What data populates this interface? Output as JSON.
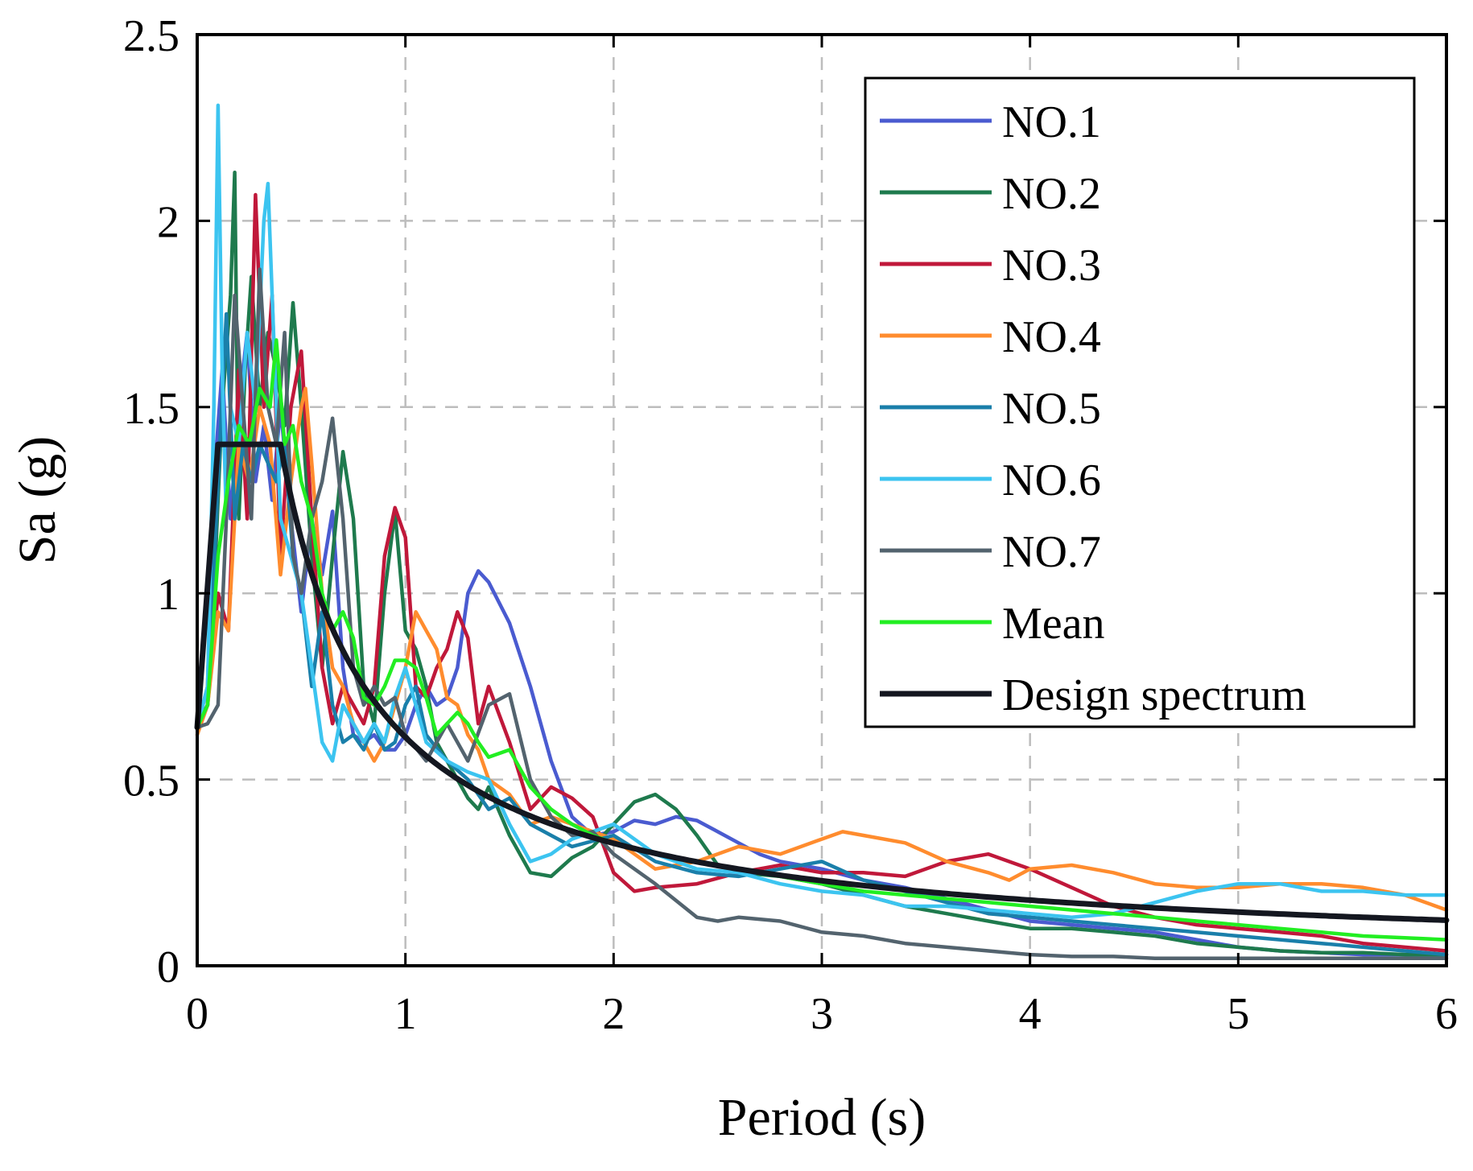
{
  "chart_data": {
    "type": "line",
    "title": "",
    "xlabel": "Period (s)",
    "ylabel": "Sa (g)",
    "xlim": [
      0,
      6
    ],
    "ylim": [
      0,
      2.5
    ],
    "xticks": [
      "0",
      "1",
      "2",
      "3",
      "4",
      "5",
      "6"
    ],
    "yticks": [
      "0",
      "0.5",
      "1",
      "1.5",
      "2",
      "2.5"
    ],
    "grid": true,
    "legend_position": "top-right",
    "series": [
      {
        "name": "NO.1",
        "color": "#4A5BD0",
        "x": [
          0,
          0.05,
          0.08,
          0.12,
          0.16,
          0.2,
          0.24,
          0.28,
          0.32,
          0.36,
          0.4,
          0.45,
          0.5,
          0.55,
          0.6,
          0.65,
          0.7,
          0.75,
          0.8,
          0.85,
          0.9,
          0.95,
          1.0,
          1.05,
          1.1,
          1.15,
          1.2,
          1.25,
          1.3,
          1.35,
          1.4,
          1.5,
          1.6,
          1.7,
          1.8,
          1.9,
          2.0,
          2.1,
          2.2,
          2.3,
          2.4,
          2.5,
          2.6,
          2.7,
          2.8,
          3.0,
          3.2,
          3.4,
          3.6,
          3.8,
          4.0,
          4.2,
          4.4,
          4.6,
          4.8,
          5.0,
          5.2,
          5.4,
          5.6,
          5.8,
          6.0
        ],
        "y": [
          0.64,
          0.75,
          1.3,
          1.6,
          1.2,
          1.5,
          1.7,
          1.3,
          1.45,
          1.25,
          1.5,
          1.2,
          0.95,
          1.2,
          1.05,
          1.22,
          0.8,
          0.62,
          0.6,
          0.62,
          0.58,
          0.58,
          0.62,
          0.7,
          0.75,
          0.7,
          0.72,
          0.8,
          1.0,
          1.06,
          1.03,
          0.92,
          0.75,
          0.55,
          0.4,
          0.35,
          0.36,
          0.39,
          0.38,
          0.4,
          0.39,
          0.36,
          0.33,
          0.3,
          0.28,
          0.26,
          0.23,
          0.21,
          0.18,
          0.15,
          0.12,
          0.11,
          0.1,
          0.09,
          0.07,
          0.05,
          0.04,
          0.035,
          0.03,
          0.03,
          0.03
        ]
      },
      {
        "name": "NO.2",
        "color": "#1E7A4D",
        "x": [
          0,
          0.05,
          0.08,
          0.12,
          0.16,
          0.18,
          0.2,
          0.23,
          0.26,
          0.3,
          0.34,
          0.38,
          0.42,
          0.46,
          0.5,
          0.55,
          0.6,
          0.65,
          0.7,
          0.75,
          0.8,
          0.85,
          0.9,
          0.95,
          1.0,
          1.05,
          1.1,
          1.15,
          1.2,
          1.25,
          1.3,
          1.35,
          1.4,
          1.5,
          1.6,
          1.7,
          1.8,
          1.9,
          2.0,
          2.1,
          2.2,
          2.3,
          2.4,
          2.5,
          2.6,
          2.8,
          3.0,
          3.2,
          3.4,
          3.6,
          3.8,
          4.0,
          4.2,
          4.4,
          4.6,
          4.8,
          5.0,
          5.2,
          5.4,
          5.6,
          5.8,
          6.0
        ],
        "y": [
          0.65,
          0.7,
          1.0,
          1.5,
          1.8,
          2.13,
          1.2,
          1.6,
          1.85,
          1.5,
          1.7,
          1.6,
          1.45,
          1.78,
          1.5,
          1.1,
          0.8,
          1.1,
          1.38,
          1.2,
          0.75,
          0.65,
          1.0,
          1.22,
          0.9,
          0.85,
          0.75,
          0.6,
          0.55,
          0.5,
          0.45,
          0.42,
          0.48,
          0.35,
          0.25,
          0.24,
          0.29,
          0.32,
          0.38,
          0.44,
          0.46,
          0.42,
          0.35,
          0.27,
          0.25,
          0.24,
          0.22,
          0.19,
          0.16,
          0.14,
          0.12,
          0.1,
          0.1,
          0.09,
          0.08,
          0.06,
          0.05,
          0.04,
          0.035,
          0.035,
          0.03,
          0.03
        ]
      },
      {
        "name": "NO.3",
        "color": "#C0183A",
        "x": [
          0,
          0.05,
          0.1,
          0.15,
          0.2,
          0.24,
          0.28,
          0.32,
          0.36,
          0.4,
          0.45,
          0.5,
          0.55,
          0.6,
          0.65,
          0.7,
          0.75,
          0.8,
          0.85,
          0.9,
          0.95,
          1.0,
          1.05,
          1.1,
          1.15,
          1.2,
          1.25,
          1.3,
          1.35,
          1.4,
          1.5,
          1.6,
          1.7,
          1.8,
          1.9,
          2.0,
          2.1,
          2.2,
          2.4,
          2.6,
          2.8,
          3.0,
          3.2,
          3.4,
          3.6,
          3.8,
          4.0,
          4.2,
          4.4,
          4.6,
          4.8,
          5.0,
          5.2,
          5.4,
          5.6,
          5.8,
          6.0
        ],
        "y": [
          0.64,
          0.7,
          1.0,
          0.9,
          1.6,
          1.2,
          2.07,
          1.5,
          1.8,
          1.1,
          1.5,
          1.65,
          1.2,
          0.8,
          0.65,
          0.75,
          0.7,
          0.65,
          0.75,
          1.1,
          1.23,
          1.15,
          0.75,
          0.72,
          0.8,
          0.85,
          0.95,
          0.88,
          0.65,
          0.75,
          0.6,
          0.42,
          0.48,
          0.45,
          0.4,
          0.25,
          0.2,
          0.21,
          0.22,
          0.25,
          0.27,
          0.25,
          0.25,
          0.24,
          0.28,
          0.3,
          0.26,
          0.21,
          0.16,
          0.13,
          0.11,
          0.1,
          0.09,
          0.08,
          0.06,
          0.05,
          0.04
        ]
      },
      {
        "name": "NO.4",
        "color": "#FF8C2E",
        "x": [
          0,
          0.05,
          0.1,
          0.15,
          0.2,
          0.25,
          0.3,
          0.35,
          0.4,
          0.45,
          0.5,
          0.52,
          0.55,
          0.6,
          0.65,
          0.7,
          0.75,
          0.8,
          0.85,
          0.9,
          0.95,
          1.0,
          1.05,
          1.1,
          1.15,
          1.2,
          1.25,
          1.3,
          1.35,
          1.4,
          1.5,
          1.6,
          1.7,
          1.8,
          1.9,
          2.0,
          2.2,
          2.4,
          2.6,
          2.8,
          3.0,
          3.1,
          3.2,
          3.4,
          3.6,
          3.8,
          3.9,
          4.0,
          4.2,
          4.4,
          4.6,
          4.8,
          5.0,
          5.2,
          5.4,
          5.6,
          5.8,
          6.0
        ],
        "y": [
          0.62,
          0.7,
          0.95,
          0.9,
          1.4,
          1.3,
          1.5,
          1.4,
          1.05,
          1.3,
          1.5,
          1.55,
          1.35,
          1.0,
          0.8,
          0.75,
          0.65,
          0.6,
          0.55,
          0.6,
          0.7,
          0.8,
          0.95,
          0.9,
          0.85,
          0.72,
          0.7,
          0.62,
          0.58,
          0.5,
          0.46,
          0.38,
          0.4,
          0.38,
          0.36,
          0.34,
          0.26,
          0.28,
          0.32,
          0.3,
          0.34,
          0.36,
          0.35,
          0.33,
          0.28,
          0.25,
          0.23,
          0.26,
          0.27,
          0.25,
          0.22,
          0.21,
          0.21,
          0.22,
          0.22,
          0.21,
          0.19,
          0.15
        ]
      },
      {
        "name": "NO.5",
        "color": "#1A7FAA",
        "x": [
          0,
          0.05,
          0.1,
          0.14,
          0.18,
          0.22,
          0.26,
          0.3,
          0.34,
          0.38,
          0.42,
          0.46,
          0.5,
          0.55,
          0.6,
          0.65,
          0.7,
          0.75,
          0.8,
          0.85,
          0.9,
          0.95,
          1.0,
          1.05,
          1.1,
          1.2,
          1.3,
          1.4,
          1.5,
          1.6,
          1.7,
          1.8,
          2.0,
          2.2,
          2.4,
          2.6,
          2.8,
          3.0,
          3.2,
          3.4,
          3.6,
          3.8,
          4.0,
          4.2,
          4.4,
          4.6,
          4.8,
          5.0,
          5.2,
          5.4,
          5.6,
          5.8,
          6.0
        ],
        "y": [
          0.64,
          0.7,
          1.3,
          1.75,
          1.2,
          1.4,
          1.3,
          1.4,
          1.35,
          1.3,
          1.4,
          1.1,
          1.0,
          0.75,
          0.95,
          0.7,
          0.6,
          0.62,
          0.58,
          0.65,
          0.58,
          0.6,
          0.7,
          0.75,
          0.62,
          0.55,
          0.5,
          0.42,
          0.45,
          0.38,
          0.35,
          0.32,
          0.35,
          0.28,
          0.25,
          0.24,
          0.26,
          0.28,
          0.23,
          0.2,
          0.17,
          0.14,
          0.13,
          0.12,
          0.11,
          0.1,
          0.09,
          0.08,
          0.07,
          0.06,
          0.05,
          0.04,
          0.03
        ]
      },
      {
        "name": "NO.6",
        "color": "#3CC4F0",
        "x": [
          0,
          0.05,
          0.08,
          0.1,
          0.12,
          0.14,
          0.16,
          0.2,
          0.24,
          0.28,
          0.32,
          0.34,
          0.36,
          0.4,
          0.45,
          0.5,
          0.55,
          0.6,
          0.65,
          0.7,
          0.75,
          0.8,
          0.85,
          0.9,
          0.95,
          1.0,
          1.05,
          1.1,
          1.2,
          1.3,
          1.4,
          1.5,
          1.6,
          1.7,
          1.8,
          1.9,
          2.0,
          2.2,
          2.4,
          2.6,
          2.8,
          3.0,
          3.2,
          3.4,
          3.6,
          3.8,
          4.0,
          4.2,
          4.4,
          4.6,
          4.8,
          5.0,
          5.2,
          5.4,
          5.6,
          5.8,
          6.0
        ],
        "y": [
          0.64,
          0.75,
          1.5,
          2.31,
          1.6,
          1.2,
          1.5,
          1.4,
          1.7,
          1.5,
          2.0,
          2.1,
          1.8,
          1.2,
          1.1,
          1.0,
          0.8,
          0.6,
          0.55,
          0.7,
          0.65,
          0.6,
          0.65,
          0.6,
          0.72,
          0.8,
          0.7,
          0.6,
          0.55,
          0.52,
          0.5,
          0.38,
          0.28,
          0.3,
          0.34,
          0.36,
          0.38,
          0.3,
          0.26,
          0.25,
          0.22,
          0.2,
          0.19,
          0.16,
          0.16,
          0.15,
          0.14,
          0.13,
          0.14,
          0.17,
          0.2,
          0.22,
          0.22,
          0.2,
          0.2,
          0.19,
          0.19
        ]
      },
      {
        "name": "NO.7",
        "color": "#53636E",
        "x": [
          0,
          0.05,
          0.1,
          0.14,
          0.18,
          0.22,
          0.26,
          0.3,
          0.34,
          0.38,
          0.42,
          0.46,
          0.5,
          0.55,
          0.6,
          0.65,
          0.7,
          0.75,
          0.8,
          0.85,
          0.9,
          0.95,
          1.0,
          1.1,
          1.2,
          1.3,
          1.4,
          1.5,
          1.6,
          1.7,
          1.8,
          1.9,
          2.0,
          2.2,
          2.4,
          2.5,
          2.6,
          2.8,
          3.0,
          3.2,
          3.4,
          3.6,
          3.8,
          4.0,
          4.2,
          4.4,
          4.6,
          4.8,
          5.0,
          5.2,
          5.4,
          5.6,
          5.8,
          6.0
        ],
        "y": [
          0.64,
          0.65,
          0.7,
          1.2,
          1.8,
          1.5,
          1.2,
          1.87,
          1.5,
          1.4,
          1.7,
          1.1,
          1.0,
          1.2,
          1.3,
          1.47,
          1.2,
          0.8,
          0.7,
          0.75,
          0.7,
          0.72,
          0.62,
          0.55,
          0.65,
          0.55,
          0.7,
          0.73,
          0.5,
          0.4,
          0.35,
          0.36,
          0.3,
          0.22,
          0.13,
          0.12,
          0.13,
          0.12,
          0.09,
          0.08,
          0.06,
          0.05,
          0.04,
          0.03,
          0.025,
          0.025,
          0.02,
          0.02,
          0.02,
          0.02,
          0.02,
          0.02,
          0.02,
          0.02
        ]
      },
      {
        "name": "Mean",
        "color": "#22EE22",
        "x": [
          0,
          0.05,
          0.1,
          0.15,
          0.2,
          0.25,
          0.3,
          0.35,
          0.38,
          0.42,
          0.46,
          0.5,
          0.55,
          0.6,
          0.65,
          0.7,
          0.75,
          0.8,
          0.85,
          0.9,
          0.95,
          1.0,
          1.05,
          1.1,
          1.15,
          1.2,
          1.25,
          1.3,
          1.35,
          1.4,
          1.5,
          1.6,
          1.7,
          1.8,
          1.9,
          2.0,
          2.2,
          2.4,
          2.6,
          2.8,
          3.0,
          3.2,
          3.4,
          3.6,
          3.8,
          4.0,
          4.2,
          4.4,
          4.6,
          4.8,
          5.0,
          5.2,
          5.4,
          5.6,
          5.8,
          6.0
        ],
        "y": [
          0.64,
          0.7,
          1.1,
          1.3,
          1.45,
          1.4,
          1.55,
          1.5,
          1.68,
          1.4,
          1.45,
          1.3,
          1.2,
          1.0,
          0.9,
          0.95,
          0.88,
          0.72,
          0.7,
          0.75,
          0.82,
          0.82,
          0.8,
          0.72,
          0.62,
          0.65,
          0.68,
          0.65,
          0.6,
          0.56,
          0.58,
          0.48,
          0.42,
          0.38,
          0.35,
          0.33,
          0.3,
          0.28,
          0.26,
          0.24,
          0.22,
          0.2,
          0.19,
          0.18,
          0.17,
          0.16,
          0.15,
          0.14,
          0.13,
          0.12,
          0.11,
          0.1,
          0.09,
          0.08,
          0.075,
          0.07
        ]
      },
      {
        "name": "Design spectrum",
        "color": "#141720",
        "formula": "Sa = 0.64 + (1.4-0.64)*T/0.1 for T<0.1; 1.4 for 0.1<=T<=0.4; 1.4*(0.4/T)^0.9 beyond"
      }
    ]
  }
}
